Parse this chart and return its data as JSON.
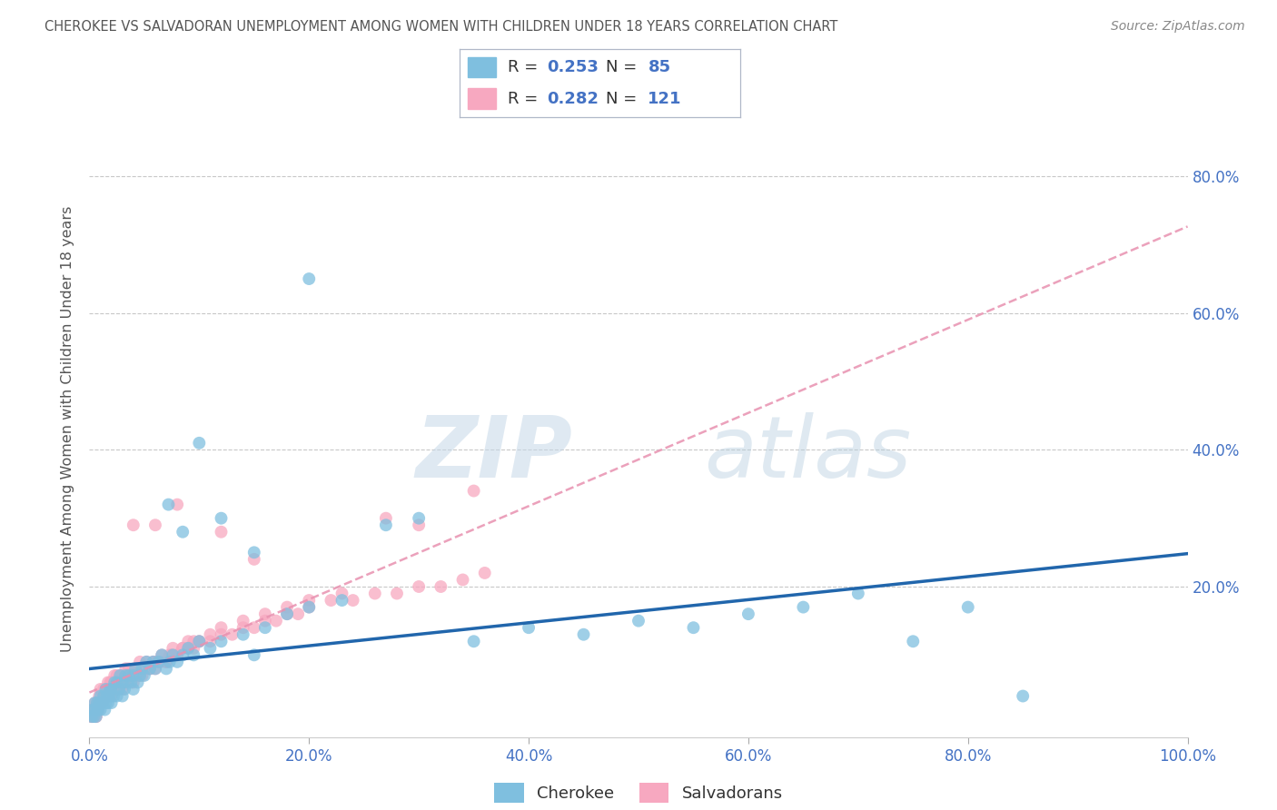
{
  "title": "CHEROKEE VS SALVADORAN UNEMPLOYMENT AMONG WOMEN WITH CHILDREN UNDER 18 YEARS CORRELATION CHART",
  "source": "Source: ZipAtlas.com",
  "ylabel": "Unemployment Among Women with Children Under 18 years",
  "xlim": [
    0.0,
    1.0
  ],
  "ylim": [
    -0.02,
    0.88
  ],
  "xticks": [
    0.0,
    0.2,
    0.4,
    0.6,
    0.8,
    1.0
  ],
  "xticklabels": [
    "0.0%",
    "20.0%",
    "40.0%",
    "60.0%",
    "80.0%",
    "100.0%"
  ],
  "yticks": [
    0.0,
    0.2,
    0.4,
    0.6,
    0.8
  ],
  "yticklabels": [
    "",
    "20.0%",
    "40.0%",
    "60.0%",
    "80.0%"
  ],
  "cherokee_color": "#7fbfdf",
  "salvadoran_color": "#f7a8c0",
  "cherokee_line_color": "#2166ac",
  "salvadoran_line_color": "#e891b0",
  "cherokee_R": 0.253,
  "cherokee_N": 85,
  "salvadoran_R": 0.282,
  "salvadoran_N": 121,
  "watermark_zip": "ZIP",
  "watermark_atlas": "atlas",
  "background_color": "#ffffff",
  "grid_color": "#c8c8c8",
  "title_color": "#555555",
  "tick_color": "#4472c4",
  "legend_text_color": "#333333",
  "source_color": "#888888",
  "ylabel_color": "#555555",
  "cherokee_x": [
    0.002,
    0.003,
    0.004,
    0.005,
    0.005,
    0.006,
    0.007,
    0.007,
    0.008,
    0.009,
    0.01,
    0.01,
    0.01,
    0.012,
    0.013,
    0.014,
    0.015,
    0.015,
    0.016,
    0.017,
    0.018,
    0.019,
    0.02,
    0.02,
    0.022,
    0.023,
    0.025,
    0.025,
    0.027,
    0.028,
    0.03,
    0.03,
    0.032,
    0.033,
    0.035,
    0.036,
    0.038,
    0.04,
    0.04,
    0.042,
    0.044,
    0.046,
    0.048,
    0.05,
    0.052,
    0.055,
    0.058,
    0.06,
    0.063,
    0.066,
    0.07,
    0.073,
    0.076,
    0.08,
    0.085,
    0.09,
    0.095,
    0.1,
    0.11,
    0.12,
    0.14,
    0.16,
    0.18,
    0.2,
    0.23,
    0.27,
    0.3,
    0.35,
    0.4,
    0.45,
    0.5,
    0.55,
    0.6,
    0.65,
    0.7,
    0.75,
    0.8,
    0.85,
    0.1,
    0.12,
    0.15,
    0.2,
    0.072,
    0.085,
    0.15
  ],
  "cherokee_y": [
    0.01,
    0.02,
    0.01,
    0.03,
    0.02,
    0.01,
    0.02,
    0.03,
    0.02,
    0.03,
    0.02,
    0.04,
    0.03,
    0.03,
    0.04,
    0.02,
    0.03,
    0.05,
    0.04,
    0.03,
    0.04,
    0.05,
    0.03,
    0.05,
    0.04,
    0.06,
    0.04,
    0.06,
    0.05,
    0.07,
    0.04,
    0.06,
    0.05,
    0.07,
    0.06,
    0.07,
    0.06,
    0.05,
    0.07,
    0.08,
    0.06,
    0.07,
    0.08,
    0.07,
    0.09,
    0.08,
    0.09,
    0.08,
    0.09,
    0.1,
    0.08,
    0.09,
    0.1,
    0.09,
    0.1,
    0.11,
    0.1,
    0.12,
    0.11,
    0.12,
    0.13,
    0.14,
    0.16,
    0.17,
    0.18,
    0.29,
    0.3,
    0.12,
    0.14,
    0.13,
    0.15,
    0.14,
    0.16,
    0.17,
    0.19,
    0.12,
    0.17,
    0.04,
    0.41,
    0.3,
    0.25,
    0.65,
    0.32,
    0.28,
    0.1
  ],
  "salvadoran_x": [
    0.002,
    0.003,
    0.004,
    0.005,
    0.005,
    0.006,
    0.007,
    0.007,
    0.008,
    0.009,
    0.01,
    0.01,
    0.012,
    0.013,
    0.014,
    0.015,
    0.016,
    0.017,
    0.018,
    0.019,
    0.02,
    0.02,
    0.022,
    0.023,
    0.025,
    0.025,
    0.027,
    0.028,
    0.03,
    0.03,
    0.032,
    0.033,
    0.035,
    0.036,
    0.038,
    0.04,
    0.04,
    0.042,
    0.044,
    0.046,
    0.048,
    0.05,
    0.052,
    0.055,
    0.058,
    0.06,
    0.063,
    0.066,
    0.07,
    0.073,
    0.076,
    0.08,
    0.085,
    0.09,
    0.095,
    0.1,
    0.11,
    0.12,
    0.14,
    0.16,
    0.18,
    0.2,
    0.23,
    0.27,
    0.3,
    0.35,
    0.002,
    0.003,
    0.004,
    0.005,
    0.006,
    0.007,
    0.008,
    0.009,
    0.01,
    0.012,
    0.014,
    0.016,
    0.018,
    0.02,
    0.022,
    0.025,
    0.028,
    0.032,
    0.036,
    0.04,
    0.045,
    0.05,
    0.055,
    0.06,
    0.065,
    0.07,
    0.075,
    0.08,
    0.085,
    0.09,
    0.095,
    0.1,
    0.11,
    0.12,
    0.13,
    0.14,
    0.15,
    0.16,
    0.17,
    0.18,
    0.19,
    0.2,
    0.22,
    0.24,
    0.26,
    0.28,
    0.3,
    0.32,
    0.34,
    0.36,
    0.04,
    0.06,
    0.08,
    0.12,
    0.15
  ],
  "salvadoran_y": [
    0.01,
    0.02,
    0.02,
    0.03,
    0.02,
    0.01,
    0.03,
    0.02,
    0.03,
    0.04,
    0.03,
    0.05,
    0.04,
    0.05,
    0.04,
    0.05,
    0.05,
    0.06,
    0.05,
    0.06,
    0.04,
    0.06,
    0.05,
    0.07,
    0.05,
    0.07,
    0.06,
    0.07,
    0.05,
    0.07,
    0.06,
    0.08,
    0.07,
    0.08,
    0.07,
    0.06,
    0.08,
    0.07,
    0.08,
    0.09,
    0.07,
    0.08,
    0.09,
    0.08,
    0.09,
    0.08,
    0.09,
    0.1,
    0.09,
    0.1,
    0.11,
    0.1,
    0.11,
    0.12,
    0.11,
    0.12,
    0.13,
    0.14,
    0.15,
    0.16,
    0.17,
    0.18,
    0.19,
    0.3,
    0.29,
    0.34,
    0.01,
    0.01,
    0.02,
    0.02,
    0.01,
    0.02,
    0.02,
    0.03,
    0.03,
    0.03,
    0.04,
    0.04,
    0.04,
    0.05,
    0.05,
    0.05,
    0.06,
    0.06,
    0.07,
    0.07,
    0.07,
    0.08,
    0.08,
    0.09,
    0.09,
    0.09,
    0.1,
    0.1,
    0.11,
    0.11,
    0.12,
    0.12,
    0.12,
    0.13,
    0.13,
    0.14,
    0.14,
    0.15,
    0.15,
    0.16,
    0.16,
    0.17,
    0.18,
    0.18,
    0.19,
    0.19,
    0.2,
    0.2,
    0.21,
    0.22,
    0.29,
    0.29,
    0.32,
    0.28,
    0.24
  ]
}
